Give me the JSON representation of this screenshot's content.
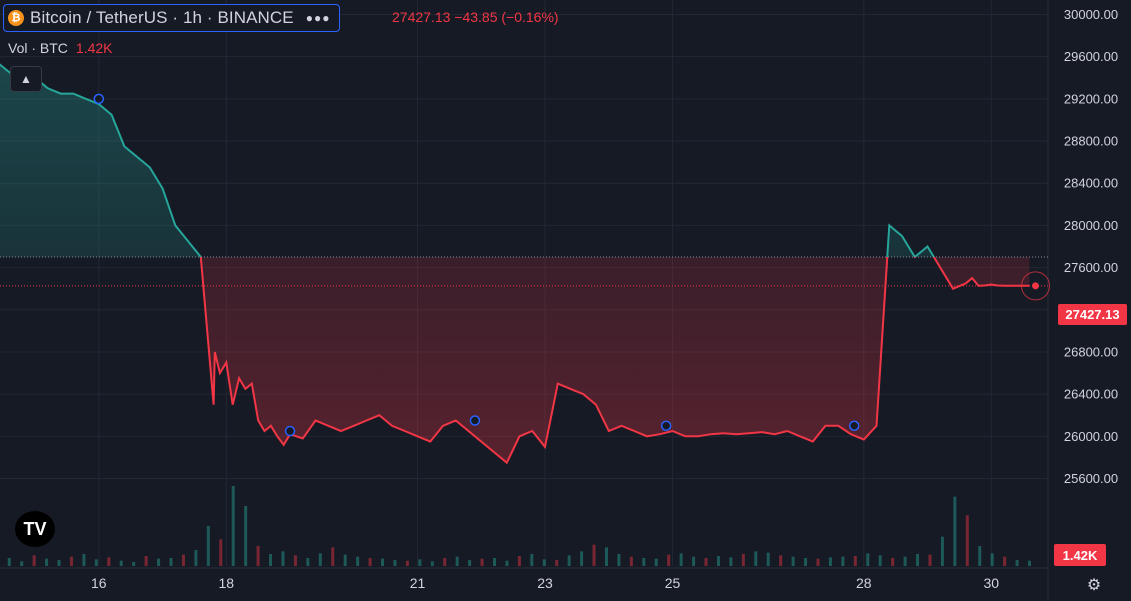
{
  "header": {
    "coin_glyph": "₿",
    "symbol_text": "Bitcoin / TetherUS · 1h · BINANCE",
    "more_icon": "more-dots-icon",
    "price_change_text": "27427.13  −43.85 (−0.16%)"
  },
  "volume_legend": {
    "label": "Vol · BTC",
    "value": "1.42K"
  },
  "price_tag": "27427.13",
  "volume_tag": "1.42K",
  "logo_text": "TV",
  "colors": {
    "up": "#26a69a",
    "down": "#f23645",
    "background": "#161a25",
    "grid": "#232733",
    "text": "#d1d4dc"
  },
  "chart_data": {
    "type": "area",
    "symbol": "BTCUSDT",
    "interval": "1h",
    "y_axis_ticks": [
      "30000.00",
      "29600.00",
      "29200.00",
      "28800.00",
      "28400.00",
      "28000.00",
      "27600.00",
      "27200.00",
      "26800.00",
      "26400.00",
      "26000.00",
      "25600.00"
    ],
    "x_axis_ticks": [
      "16",
      "18",
      "21",
      "23",
      "25",
      "28",
      "30"
    ],
    "ylim": [
      25400,
      30100
    ],
    "last_price": 27427.13,
    "reference_price": 27700,
    "series": [
      {
        "x": [
          14.4,
          14.6,
          14.8,
          15.0,
          15.2,
          15.4,
          15.6,
          15.8,
          16.0,
          16.2,
          16.4,
          16.6,
          16.8,
          17.0,
          17.2,
          17.4,
          17.6,
          17.8,
          17.82,
          17.9,
          18.0,
          18.1,
          18.2,
          18.3,
          18.4,
          18.5,
          18.6,
          18.7,
          18.8,
          18.9,
          19.0,
          19.2,
          19.4,
          19.6,
          19.8,
          20.0,
          20.2,
          20.4,
          20.6,
          20.8,
          21.0,
          21.2,
          21.4,
          21.6,
          21.8,
          22.0,
          22.2,
          22.4,
          22.6,
          22.8,
          23.0,
          23.2,
          23.4,
          23.6,
          23.8,
          24.0,
          24.2,
          24.4,
          24.6,
          24.8,
          25.0,
          25.2,
          25.4,
          25.6,
          25.8,
          26.0,
          26.2,
          26.4,
          26.6,
          26.8,
          27.0,
          27.2,
          27.4,
          27.6,
          27.8,
          28.0,
          28.2,
          28.4,
          28.6,
          28.8,
          29.0,
          29.2,
          29.4,
          29.6,
          29.7,
          29.8,
          29.9,
          30.0,
          30.1,
          30.2,
          30.3,
          30.4,
          30.5,
          30.6
        ],
        "y": [
          29550,
          29450,
          29500,
          29400,
          29300,
          29250,
          29250,
          29200,
          29150,
          29050,
          28750,
          28650,
          28550,
          28350,
          28000,
          27850,
          27700,
          26300,
          26800,
          26600,
          26700,
          26300,
          26550,
          26450,
          26500,
          26150,
          26050,
          26100,
          26000,
          25920,
          26020,
          25980,
          26150,
          26100,
          26050,
          26100,
          26150,
          26200,
          26100,
          26050,
          26000,
          25950,
          26100,
          26150,
          26050,
          25950,
          25850,
          25750,
          26000,
          26050,
          25900,
          26500,
          26450,
          26400,
          26300,
          26050,
          26100,
          26050,
          26000,
          26020,
          26050,
          26000,
          26000,
          26020,
          26030,
          26020,
          26030,
          26040,
          26020,
          26050,
          26000,
          25950,
          26100,
          26100,
          26020,
          25970,
          26100,
          28000,
          27900,
          27700,
          27800,
          27600,
          27400,
          27450,
          27500,
          27427,
          27430,
          27440,
          27430,
          27427,
          27427,
          27427,
          27427,
          27427
        ]
      }
    ],
    "markers": [
      {
        "x": 16.0,
        "y": 29200
      },
      {
        "x": 19.0,
        "y": 26050
      },
      {
        "x": 21.9,
        "y": 26150
      },
      {
        "x": 24.9,
        "y": 26100
      },
      {
        "x": 27.85,
        "y": 26100
      }
    ],
    "volume": {
      "x_start": 14.4,
      "x_end": 30.6,
      "values": [
        40,
        60,
        35,
        80,
        55,
        45,
        70,
        90,
        50,
        65,
        40,
        30,
        75,
        55,
        60,
        85,
        120,
        300,
        200,
        600,
        450,
        150,
        90,
        110,
        80,
        60,
        95,
        140,
        85,
        70,
        60,
        55,
        45,
        40,
        50,
        35,
        60,
        70,
        45,
        55,
        60,
        40,
        75,
        90,
        50,
        45,
        80,
        110,
        160,
        140,
        90,
        70,
        60,
        55,
        85,
        95,
        70,
        60,
        75,
        65,
        90,
        110,
        100,
        80,
        70,
        60,
        55,
        65,
        70,
        75,
        95,
        80,
        60,
        70,
        90,
        85,
        220,
        520,
        380,
        150,
        95,
        70,
        45,
        40
      ]
    }
  }
}
